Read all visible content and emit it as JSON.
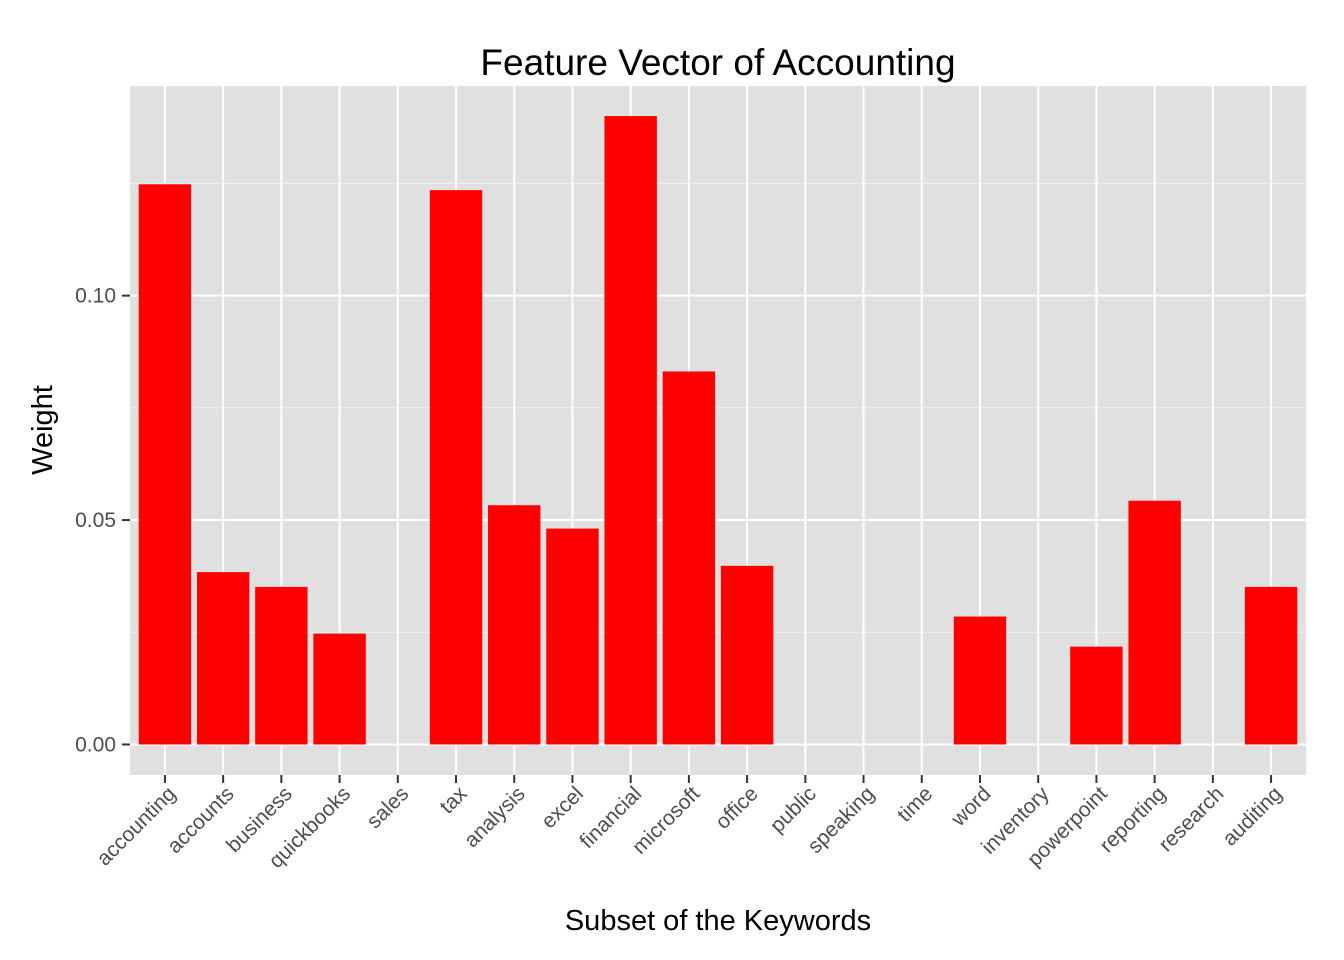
{
  "chart_data": {
    "type": "bar",
    "title": "Feature Vector of Accounting",
    "xlabel": "Subset of the Keywords",
    "ylabel": "Weight",
    "categories": [
      "accounting",
      "accounts",
      "business",
      "quickbooks",
      "sales",
      "tax",
      "analysis",
      "excel",
      "financial",
      "microsoft",
      "office",
      "public",
      "speaking",
      "time",
      "word",
      "inventory",
      "powerpoint",
      "reporting",
      "research",
      "auditing"
    ],
    "values": [
      0.1248,
      0.0384,
      0.0351,
      0.0247,
      0.0,
      0.1235,
      0.0533,
      0.0481,
      0.14,
      0.0831,
      0.0398,
      0.0,
      0.0,
      0.0,
      0.0285,
      0.0,
      0.0218,
      0.0543,
      0.0,
      0.0351
    ],
    "ylim": [
      -0.0068,
      0.1467
    ],
    "yticks": [
      0.0,
      0.05,
      0.1
    ],
    "ytick_labels": [
      "0.00",
      "0.05",
      "0.10"
    ],
    "grid": true,
    "bar_color": "#ff0000",
    "panel_background": "#e0e0e0",
    "grid_color": "#ffffff"
  }
}
